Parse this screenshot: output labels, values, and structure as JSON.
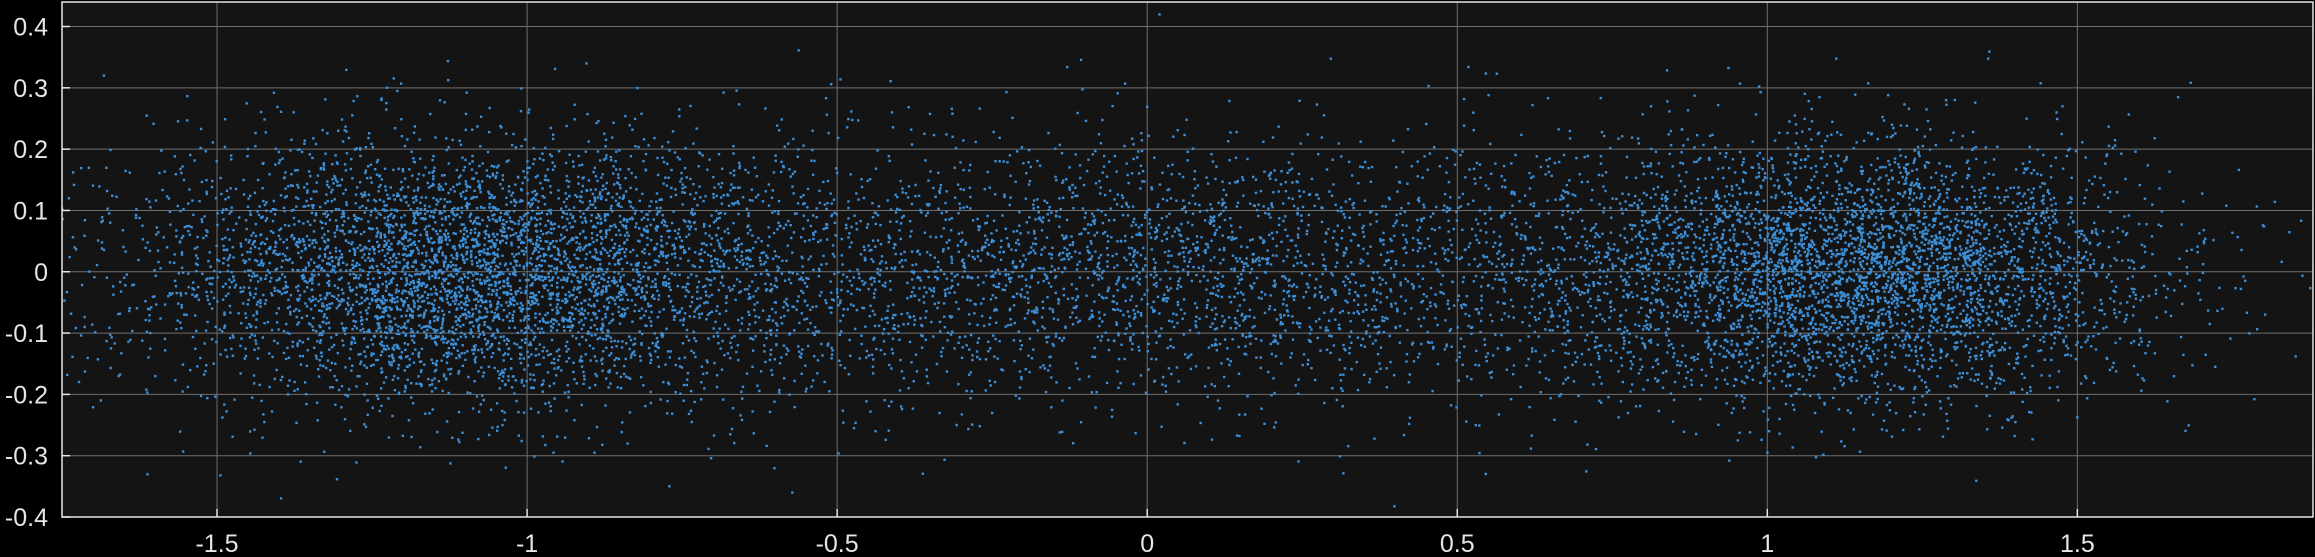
{
  "chart_data": {
    "type": "scatter",
    "title": "",
    "xlabel": "",
    "ylabel": "",
    "xlim": [
      -1.75,
      1.88
    ],
    "ylim": [
      -0.4,
      0.44
    ],
    "x_ticks": [
      -1.5,
      -1,
      -0.5,
      0,
      0.5,
      1,
      1.5
    ],
    "x_tick_labels": [
      "-1.5",
      "-1",
      "-0.5",
      "0",
      "0.5",
      "1",
      "1.5"
    ],
    "y_ticks": [
      -0.4,
      -0.3,
      -0.2,
      -0.1,
      0,
      0.1,
      0.2,
      0.3,
      0.4
    ],
    "y_tick_labels": [
      "-0.4",
      "-0.3",
      "-0.2",
      "-0.1",
      "0",
      "0.1",
      "0.2",
      "0.3",
      "0.4"
    ],
    "grid": true,
    "legend": "none",
    "background_color": "#141414",
    "grid_color": "#6e6e6e",
    "axis_color": "#e6e6e6",
    "marker_color": "#3d8fd8",
    "point_count": 12000,
    "point_distribution": {
      "clusters": [
        {
          "x": -1.1,
          "y": 0.0,
          "sx": 0.26,
          "sy": 0.11,
          "weight": 0.36
        },
        {
          "x": 1.15,
          "y": 0.0,
          "sx": 0.24,
          "sy": 0.105,
          "weight": 0.34
        },
        {
          "x": 0.0,
          "y": 0.0,
          "sx": 0.55,
          "sy": 0.11,
          "weight": 0.3
        }
      ]
    }
  }
}
